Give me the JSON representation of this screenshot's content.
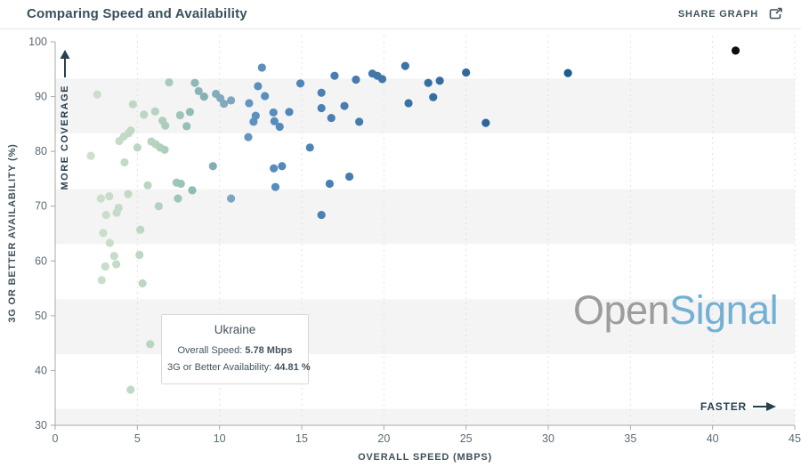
{
  "header": {
    "title": "Comparing Speed and Availability",
    "share_button": {
      "label": "SHARE GRAPH",
      "icon": "share-export-icon"
    }
  },
  "annotations": {
    "more_coverage": "MORE COVERAGE",
    "faster": "FASTER"
  },
  "watermark": {
    "part1": "Open",
    "part2": "Signal"
  },
  "tooltip": {
    "country": "Ukraine",
    "speed_label": "Overall Speed:",
    "speed_value": "5.78 Mbps",
    "availability_label": "3G or Better Availability:",
    "availability_value": "44.81 %"
  },
  "colors": {
    "band": "#f4f4f4",
    "gridline": "#e2e2e2",
    "axis": "#a8a8a8",
    "tick_text": "#5d6a73",
    "annotation": "#28414f",
    "watermark_open": "#9c9c9c",
    "watermark_signal": "#74b0d4"
  },
  "chart_data": {
    "type": "scatter",
    "title": "Comparing Speed and Availability",
    "xlabel": "OVERALL SPEED (MBPS)",
    "ylabel": "3G OR BETTER AVAILABILITY (%)",
    "xlim": [
      0,
      45
    ],
    "ylim": [
      30,
      100
    ],
    "x_ticks": [
      0,
      5,
      10,
      15,
      20,
      25,
      30,
      35,
      40,
      45
    ],
    "y_ticks": [
      30,
      40,
      50,
      60,
      70,
      80,
      90,
      100
    ],
    "grid": "vertical-dashed",
    "legend": "none",
    "shade_bands": [
      [
        83.3,
        93.3
      ],
      [
        63.1,
        73.1
      ],
      [
        43,
        53
      ],
      [
        30,
        33
      ]
    ],
    "color_by": "overall_speed_mbps",
    "color_stops": [
      [
        2,
        "#cde0ce"
      ],
      [
        4.5,
        "#c2d9c4"
      ],
      [
        6,
        "#b7d4bf"
      ],
      [
        7.5,
        "#9dc6b8"
      ],
      [
        9,
        "#86b0b4"
      ],
      [
        10.5,
        "#82a8bf"
      ],
      [
        12,
        "#5d92bf"
      ],
      [
        14,
        "#5389ba"
      ],
      [
        16.5,
        "#4a80b1"
      ],
      [
        19,
        "#4379ab"
      ],
      [
        22,
        "#3871a4"
      ],
      [
        25,
        "#2f6a9b"
      ],
      [
        31.5,
        "#1d5c8f"
      ],
      [
        41.5,
        "#0d0d0d"
      ]
    ],
    "highlight_point": {
      "country": "Ukraine",
      "x": 5.78,
      "y": 44.81
    },
    "points": [
      [
        2.17,
        79.2
      ],
      [
        2.56,
        90.4
      ],
      [
        2.78,
        71.4
      ],
      [
        2.83,
        56.5
      ],
      [
        2.92,
        65.1
      ],
      [
        3.05,
        59.0
      ],
      [
        3.1,
        68.4
      ],
      [
        3.29,
        71.8
      ],
      [
        3.32,
        63.3
      ],
      [
        3.59,
        60.9
      ],
      [
        3.72,
        59.4
      ],
      [
        3.74,
        68.8
      ],
      [
        3.86,
        69.7
      ],
      [
        3.9,
        81.9
      ],
      [
        4.17,
        82.7
      ],
      [
        4.22,
        78.0
      ],
      [
        4.44,
        72.2
      ],
      [
        4.46,
        83.3
      ],
      [
        4.59,
        36.5
      ],
      [
        4.6,
        83.8
      ],
      [
        4.73,
        88.6
      ],
      [
        5.0,
        80.7
      ],
      [
        5.13,
        61.1
      ],
      [
        5.18,
        65.7
      ],
      [
        5.31,
        55.9
      ],
      [
        5.4,
        86.7
      ],
      [
        5.63,
        73.8
      ],
      [
        5.78,
        44.81
      ],
      [
        5.85,
        81.8
      ],
      [
        6.08,
        87.3
      ],
      [
        6.12,
        81.3
      ],
      [
        6.3,
        70.0
      ],
      [
        6.39,
        80.7
      ],
      [
        6.53,
        85.6
      ],
      [
        6.66,
        80.3
      ],
      [
        6.7,
        84.7
      ],
      [
        6.93,
        92.6
      ],
      [
        7.38,
        74.3
      ],
      [
        7.47,
        71.4
      ],
      [
        7.6,
        86.6
      ],
      [
        7.65,
        74.1
      ],
      [
        8.0,
        84.6
      ],
      [
        8.2,
        87.2
      ],
      [
        8.34,
        72.9
      ],
      [
        8.5,
        92.5
      ],
      [
        8.73,
        91.0
      ],
      [
        9.06,
        90.0
      ],
      [
        9.6,
        77.3
      ],
      [
        9.78,
        90.5
      ],
      [
        10.05,
        89.7
      ],
      [
        10.27,
        88.7
      ],
      [
        10.7,
        89.3
      ],
      [
        10.7,
        71.4
      ],
      [
        11.75,
        82.6
      ],
      [
        11.8,
        88.8
      ],
      [
        12.07,
        85.4
      ],
      [
        12.2,
        86.5
      ],
      [
        12.34,
        91.9
      ],
      [
        12.58,
        95.3
      ],
      [
        12.76,
        90.1
      ],
      [
        13.28,
        87.1
      ],
      [
        13.3,
        76.9
      ],
      [
        13.34,
        85.5
      ],
      [
        13.4,
        73.5
      ],
      [
        13.66,
        84.5
      ],
      [
        13.8,
        77.3
      ],
      [
        14.24,
        87.2
      ],
      [
        14.92,
        92.4
      ],
      [
        15.5,
        80.7
      ],
      [
        16.2,
        68.4
      ],
      [
        16.2,
        87.9
      ],
      [
        16.2,
        90.7
      ],
      [
        16.7,
        74.1
      ],
      [
        16.8,
        86.1
      ],
      [
        17.0,
        93.8
      ],
      [
        17.6,
        88.3
      ],
      [
        17.9,
        75.4
      ],
      [
        18.3,
        93.1
      ],
      [
        18.5,
        85.4
      ],
      [
        19.3,
        94.2
      ],
      [
        19.6,
        93.8
      ],
      [
        19.9,
        93.2
      ],
      [
        21.3,
        95.6
      ],
      [
        21.5,
        88.8
      ],
      [
        22.7,
        92.5
      ],
      [
        23.0,
        89.9
      ],
      [
        23.4,
        92.9
      ],
      [
        25.0,
        94.4
      ],
      [
        26.2,
        85.2
      ],
      [
        31.2,
        94.3
      ],
      [
        41.4,
        98.4
      ]
    ]
  }
}
